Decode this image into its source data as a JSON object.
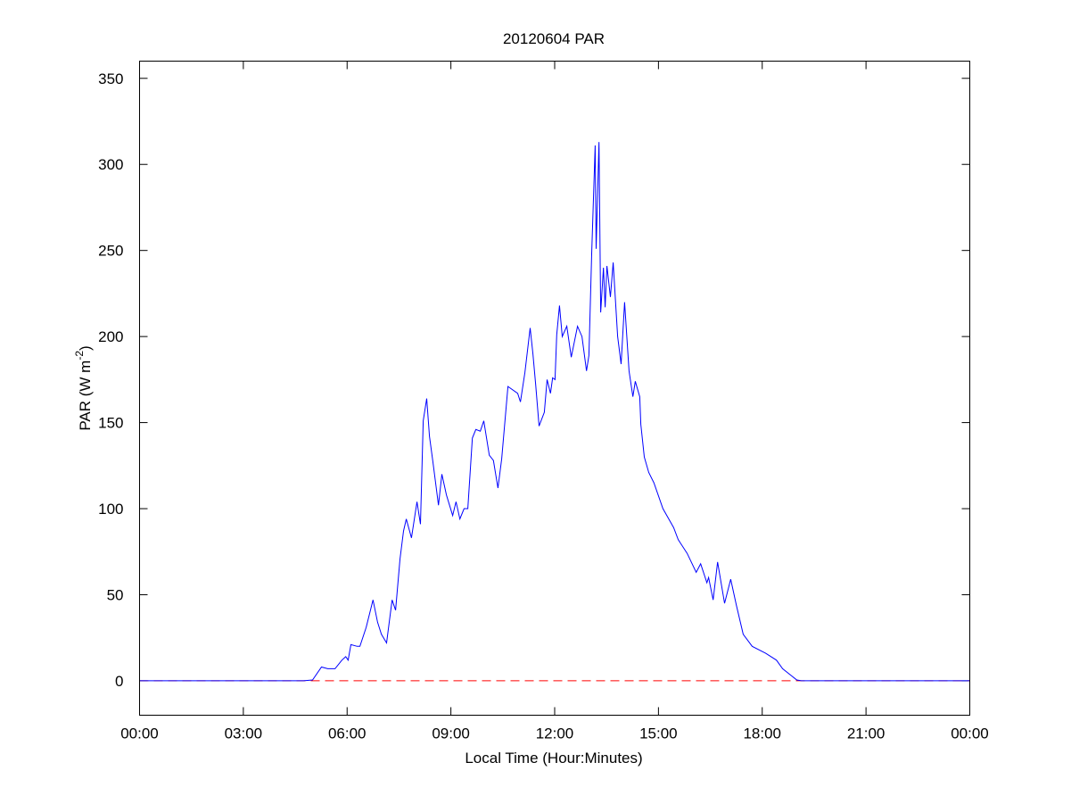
{
  "chart_data": {
    "type": "line",
    "title": "20120604 PAR",
    "xlabel": "Local Time (Hour:Minutes)",
    "ylabel_main": "PAR (W m",
    "ylabel_sup": "-2",
    "ylabel_close": ")",
    "xlim": [
      0,
      24
    ],
    "ylim": [
      -20,
      360
    ],
    "xticks": [
      0,
      3,
      6,
      9,
      12,
      15,
      18,
      21,
      24
    ],
    "xtick_labels": [
      "00:00",
      "03:00",
      "06:00",
      "09:00",
      "12:00",
      "15:00",
      "18:00",
      "21:00",
      "00:00"
    ],
    "yticks": [
      0,
      50,
      100,
      150,
      200,
      250,
      300,
      350
    ],
    "ytick_labels": [
      "0",
      "50",
      "100",
      "150",
      "200",
      "250",
      "300",
      "350"
    ],
    "grid": false,
    "series": [
      {
        "name": "PAR",
        "color": "#0000ff",
        "x": [
          0,
          4.49,
          4.74,
          5.0,
          5.26,
          5.44,
          5.65,
          5.85,
          5.96,
          6.03,
          6.11,
          6.29,
          6.37,
          6.55,
          6.75,
          6.88,
          6.99,
          7.14,
          7.3,
          7.4,
          7.53,
          7.63,
          7.71,
          7.86,
          8.02,
          8.12,
          8.2,
          8.3,
          8.38,
          8.48,
          8.64,
          8.74,
          8.87,
          9.05,
          9.15,
          9.26,
          9.38,
          9.49,
          9.62,
          9.72,
          9.85,
          9.95,
          10.11,
          10.23,
          10.36,
          10.47,
          10.65,
          10.93,
          11.01,
          11.14,
          11.29,
          11.37,
          11.45,
          11.55,
          11.7,
          11.78,
          11.88,
          11.94,
          12.01,
          12.06,
          12.14,
          12.22,
          12.35,
          12.48,
          12.66,
          12.79,
          12.92,
          12.99,
          13.07,
          13.17,
          13.2,
          13.28,
          13.33,
          13.41,
          13.46,
          13.51,
          13.61,
          13.69,
          13.82,
          13.92,
          14.02,
          14.15,
          14.26,
          14.33,
          14.46,
          14.49,
          14.59,
          14.72,
          14.87,
          15.13,
          15.44,
          15.57,
          15.83,
          16.09,
          16.22,
          16.4,
          16.45,
          16.58,
          16.71,
          16.91,
          17.09,
          17.25,
          17.45,
          17.71,
          18.1,
          18.41,
          18.59,
          19.0,
          19.13,
          24
        ],
        "y": [
          0,
          0,
          0,
          0.5,
          8,
          7,
          7,
          12,
          14,
          12,
          21,
          20,
          20,
          31,
          47,
          34,
          27,
          22,
          47,
          41,
          71,
          87,
          94,
          83,
          104,
          91,
          151,
          164,
          142,
          127,
          102,
          120,
          108,
          96,
          104,
          94,
          100,
          100,
          141,
          146,
          145,
          151,
          131,
          128,
          112,
          129,
          171,
          167,
          162,
          179,
          205,
          190,
          172,
          148,
          156,
          175,
          167,
          176,
          175,
          201,
          218,
          200,
          206,
          188,
          206,
          200,
          180,
          189,
          248,
          311,
          251,
          313,
          214,
          240,
          217,
          241,
          223,
          243,
          200,
          184,
          220,
          180,
          165,
          174,
          165,
          149,
          130,
          121,
          115,
          100,
          89,
          82,
          74,
          63,
          68,
          57,
          60,
          47,
          69,
          45,
          59,
          44,
          27,
          20,
          16,
          12,
          7,
          0.5,
          0,
          0
        ]
      },
      {
        "name": "zero line",
        "color": "#ff0000",
        "style": "dashed",
        "x": [
          0,
          24
        ],
        "y": [
          0,
          0
        ]
      }
    ]
  }
}
